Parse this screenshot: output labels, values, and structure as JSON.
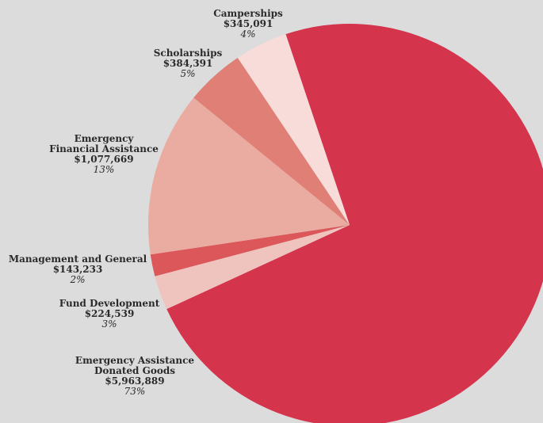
{
  "chart_data": {
    "type": "pie",
    "slices": [
      {
        "label": "Emergency Assistance Donated Goods",
        "name_lines": [
          "Emergency Assistance",
          "Donated Goods"
        ],
        "amount": "$5,963,889",
        "percent": "73%",
        "value": 5963889,
        "color": "#d4344c"
      },
      {
        "label": "Fund Development",
        "name_lines": [
          "Fund Development"
        ],
        "amount": "$224,539",
        "percent": "3%",
        "value": 224539,
        "color": "#f0c4be"
      },
      {
        "label": "Management and General",
        "name_lines": [
          "Management and General"
        ],
        "amount": "$143,233",
        "percent": "2%",
        "value": 143233,
        "color": "#db575a"
      },
      {
        "label": "Emergency Financial Assistance",
        "name_lines": [
          "Emergency",
          "Financial Assistance"
        ],
        "amount": "$1,077,669",
        "percent": "13%",
        "value": 1077669,
        "color": "#eaaba1"
      },
      {
        "label": "Scholarships",
        "name_lines": [
          "Scholarships"
        ],
        "amount": "$384,391",
        "percent": "5%",
        "value": 384391,
        "color": "#e07f76"
      },
      {
        "label": "Camperships",
        "name_lines": [
          "Camperships"
        ],
        "amount": "$345,091",
        "percent": "4%",
        "value": 345091,
        "color": "#f8dcda"
      }
    ]
  }
}
